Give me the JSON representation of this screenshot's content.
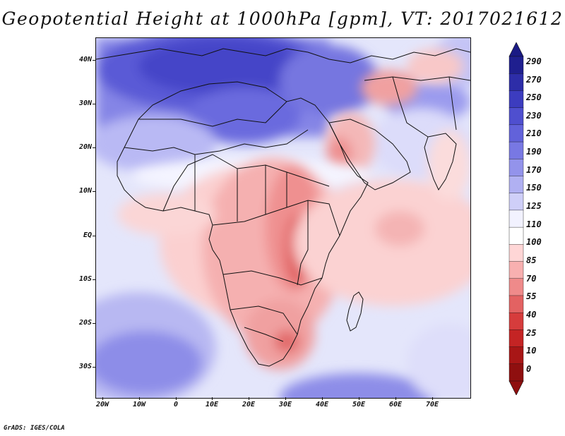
{
  "title": "Geopotential Height at 1000hPa [gpm], VT: 2017021612",
  "credit": "GrADS: IGES/COLA",
  "latitude_labels": [
    "40N",
    "30N",
    "20N",
    "10N",
    "EQ",
    "10S",
    "20S",
    "30S"
  ],
  "longitude_labels": [
    "20W",
    "10W",
    "0",
    "10E",
    "20E",
    "30E",
    "40E",
    "50E",
    "60E",
    "70E"
  ],
  "colorbar": {
    "levels": [
      "290",
      "270",
      "250",
      "230",
      "210",
      "190",
      "170",
      "150",
      "125",
      "110",
      "100",
      "85",
      "70",
      "55",
      "40",
      "25",
      "10",
      "0"
    ],
    "colors": [
      "#1f1f8f",
      "#2d2da8",
      "#3c3cbf",
      "#4f4fcf",
      "#6262da",
      "#7878e3",
      "#9393eb",
      "#b0b0f2",
      "#cfcff8",
      "#f2f2ff",
      "#ffffff",
      "#ffd6d6",
      "#f8b0b0",
      "#ef8a8a",
      "#e36262",
      "#d63c3c",
      "#c42424",
      "#a81616",
      "#8f0f0f"
    ],
    "top_arrow_color": "#1a1a85",
    "bottom_arrow_color": "#8f0f0f"
  }
}
